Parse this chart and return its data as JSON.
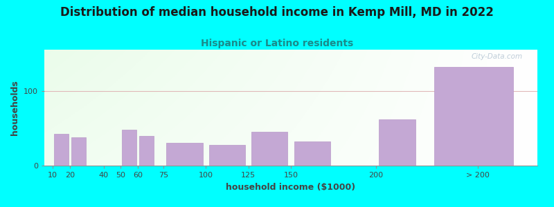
{
  "title": "Distribution of median household income in Kemp Mill, MD in 2022",
  "subtitle": "Hispanic or Latino residents",
  "xlabel": "household income ($1000)",
  "ylabel": "households",
  "background_outer": "#00FFFF",
  "bar_color": "#c4a8d4",
  "bar_edge_color": "#b898c8",
  "watermark": "City-Data.com",
  "subtitle_color": "#1a8a8a",
  "title_color": "#1a1a1a",
  "label_color": "#444444",
  "tick_color": "#444444",
  "gridline_color": "#e0b8b8",
  "categories": [
    "10",
    "20",
    "40",
    "50",
    "60",
    "75",
    "100",
    "125",
    "150",
    "200",
    "> 200"
  ],
  "values": [
    42,
    38,
    0,
    48,
    40,
    30,
    28,
    45,
    32,
    62,
    132
  ],
  "bar_lefts": [
    10,
    20,
    40,
    50,
    60,
    75,
    100,
    125,
    150,
    200,
    230
  ],
  "bar_widths": [
    10,
    10,
    10,
    10,
    10,
    25,
    25,
    25,
    25,
    25,
    55
  ],
  "xlim": [
    5,
    295
  ],
  "ylim": [
    0,
    155
  ],
  "yticks": [
    0,
    100
  ],
  "xtick_positions": [
    10,
    20,
    40,
    50,
    60,
    75,
    100,
    125,
    150,
    200,
    260
  ],
  "xtick_labels": [
    "10",
    "20",
    "40",
    "50",
    "60",
    "75",
    "100",
    "125",
    "150",
    "200",
    "> 200"
  ],
  "grid_y": 100,
  "title_fontsize": 12,
  "subtitle_fontsize": 10,
  "axis_label_fontsize": 9,
  "tick_fontsize": 8
}
